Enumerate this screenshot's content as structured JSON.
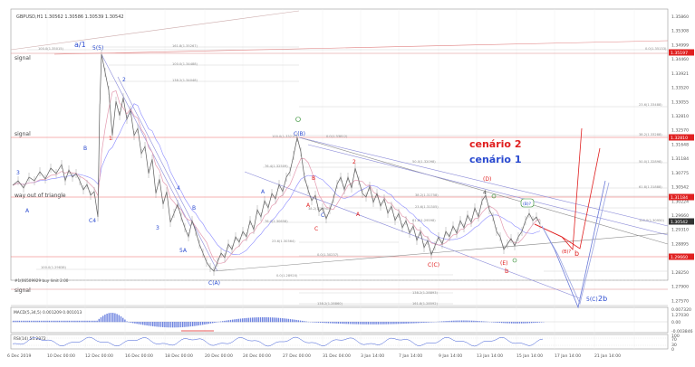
{
  "header": {
    "symbol_info": "GBPUSD,H1  1.30562 1.30586 1.30539 1.30542"
  },
  "colors": {
    "price": "#5a5a5a",
    "ma_fast": "#e39ab0",
    "ma_slow": "#8a8aff",
    "scenario_red": "#e02020",
    "scenario_blue": "#2a4ad0",
    "fib_line": "#c0c0c0",
    "grid": "#ececec",
    "macd_bar": "#3c5ad6"
  },
  "annotations": {
    "scenario_2": "cenário 2",
    "scenario_1": "cenário 1",
    "signal_1": "signal",
    "signal_2": "signal",
    "signal_3": "signal",
    "way_out": "way out of triangle",
    "buy_limit": "#1(06509929 buy limit 2.00"
  },
  "waves": [
    {
      "id": "a1",
      "label": "a/1",
      "color": "#2a4ad0"
    },
    {
      "id": "w5_5",
      "label": "5(5)",
      "color": "#2a4ad0"
    },
    {
      "id": "w2",
      "label": "2",
      "color": "#2a4ad0"
    },
    {
      "id": "w3_left",
      "label": "3",
      "color": "#2a4ad0"
    },
    {
      "id": "wA_left",
      "label": "A",
      "color": "#2a4ad0"
    },
    {
      "id": "wB_left",
      "label": "B",
      "color": "#2a4ad0"
    },
    {
      "id": "wC4",
      "label": "C4",
      "color": "#2a4ad0"
    },
    {
      "id": "w1_red",
      "label": "1",
      "color": "#e02020"
    },
    {
      "id": "w3_blue",
      "label": "3",
      "color": "#2a4ad0"
    },
    {
      "id": "w4_blue",
      "label": "4",
      "color": "#2a4ad0"
    },
    {
      "id": "w5A",
      "label": "5A",
      "color": "#2a4ad0"
    },
    {
      "id": "wB_mid",
      "label": "B",
      "color": "#2a4ad0"
    },
    {
      "id": "wCA",
      "label": "C(A)",
      "color": "#2a4ad0"
    },
    {
      "id": "wA_mid",
      "label": "A",
      "color": "#2a4ad0"
    },
    {
      "id": "wCB",
      "label": "C(B)",
      "color": "#2a4ad0"
    },
    {
      "id": "wB_red",
      "label": "B",
      "color": "#e02020"
    },
    {
      "id": "wA_red",
      "label": "A",
      "color": "#e02020"
    },
    {
      "id": "wC_red",
      "label": "C",
      "color": "#e02020"
    },
    {
      "id": "wC_blue",
      "label": "C",
      "color": "#2a4ad0"
    },
    {
      "id": "w2_red",
      "label": "2",
      "color": "#e02020"
    },
    {
      "id": "wA_red2",
      "label": "A",
      "color": "#e02020"
    },
    {
      "id": "wD",
      "label": "(D)",
      "color": "#e02020"
    },
    {
      "id": "w4_right",
      "label": "4",
      "color": "#444444"
    },
    {
      "id": "wCC",
      "label": "C(C)",
      "color": "#e02020"
    },
    {
      "id": "wE",
      "label": "(E)",
      "color": "#e02020"
    },
    {
      "id": "wb_small",
      "label": "b",
      "color": "#e02020"
    },
    {
      "id": "wB_box",
      "label": "(B)?",
      "color": "#2a4ad0"
    },
    {
      "id": "wB2",
      "label": "(B)?",
      "color": "#e02020"
    },
    {
      "id": "wb_right",
      "label": "b",
      "color": "#e02020"
    },
    {
      "id": "w5C",
      "label": "5(C)",
      "color": "#2a4ad0"
    },
    {
      "id": "w2b",
      "label": "2b",
      "color": "#2a4ad0"
    }
  ],
  "fib_labels": [
    "100.0(1.35015)",
    "161.8(1.35267)",
    "0.0(1.35133)",
    "100.0(1.34488)",
    "138.2(1.34048)",
    "23.6(1.33488)",
    "100.0(1.33215)",
    "38.2(1.33288)",
    "0.0(1.33812)",
    "50.0(1.32898)",
    "76.4(1.32509)",
    "50.0(1.32098)",
    "61.8(1.31888)",
    "38.2(1.31758)",
    "23.6(1.31305)",
    "100.0(1.30950)",
    "38.2(1.30905)",
    "76.4(1.30658)",
    "23.6(1.30364)",
    "0.0(1.30237)",
    "100.0(1.29838)",
    "61.8(1.29598)",
    "0.0(1.28920)",
    "138.2(1.28893)",
    "138.2(1.28860)",
    "161.8(1.28592)"
  ],
  "price_axis": {
    "ticks": [
      "1.35860",
      "1.35308",
      "1.34999",
      "1.34460",
      "1.33921",
      "1.33520",
      "1.33055",
      "1.32810",
      "1.32570",
      "1.31648",
      "1.31184",
      "1.30775",
      "1.30542",
      "1.30224",
      "1.29660",
      "1.29310",
      "1.28895",
      "1.28630",
      "1.28250",
      "1.27900",
      "1.27570",
      "1.27030"
    ],
    "highlights": [
      {
        "value": "1.35197",
        "color": "#e02020"
      },
      {
        "value": "1.32810",
        "color": "#e02020"
      },
      {
        "value": "1.31184",
        "color": "#e02020"
      },
      {
        "value": "1.30542",
        "color": "#333333"
      },
      {
        "value": "1.29660",
        "color": "#e02020"
      }
    ]
  },
  "time_axis": [
    "6 Dec 2019",
    "10 Dec 00:00",
    "12 Dec 00:00",
    "16 Dec 00:00",
    "18 Dec 00:00",
    "20 Dec 00:00",
    "24 Dec 00:00",
    "27 Dec 00:00",
    "31 Dec 04:00",
    "3 Jan 14:00",
    "7 Jan 14:00",
    "9 Jan 14:00",
    "13 Jan 14:00",
    "15 Jan 14:00",
    "17 Jan 14:00",
    "21 Jan 14:00"
  ],
  "macd": {
    "label": "MACD(5,34,5) 0.001209 0.001013",
    "ticks": [
      "0.007320",
      "0.00",
      "-0.003846"
    ]
  },
  "rsi": {
    "label": "RSI(14) 55.2972",
    "ticks": [
      "100",
      "70",
      "30",
      "0"
    ]
  }
}
